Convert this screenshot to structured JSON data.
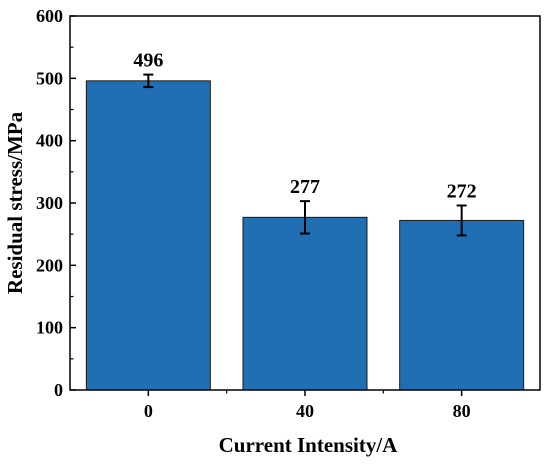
{
  "chart_data": {
    "type": "bar",
    "title": "",
    "xlabel": "Current Intensity/A",
    "ylabel": "Residual stress/MPa",
    "categories": [
      "0",
      "40",
      "80"
    ],
    "values": [
      496,
      277,
      272
    ],
    "errors": [
      10,
      26,
      24
    ],
    "value_labels": [
      "496",
      "277",
      "272"
    ],
    "ylim": [
      0,
      600
    ],
    "yticks": [
      0,
      100,
      200,
      300,
      400,
      500,
      600
    ],
    "ytick_labels": [
      "0",
      "100",
      "200",
      "300",
      "400",
      "500",
      "600"
    ],
    "bar_color": "#1f6fb2",
    "bar_edge_color": "#1a1a1a",
    "grid": false,
    "legend": "none"
  }
}
